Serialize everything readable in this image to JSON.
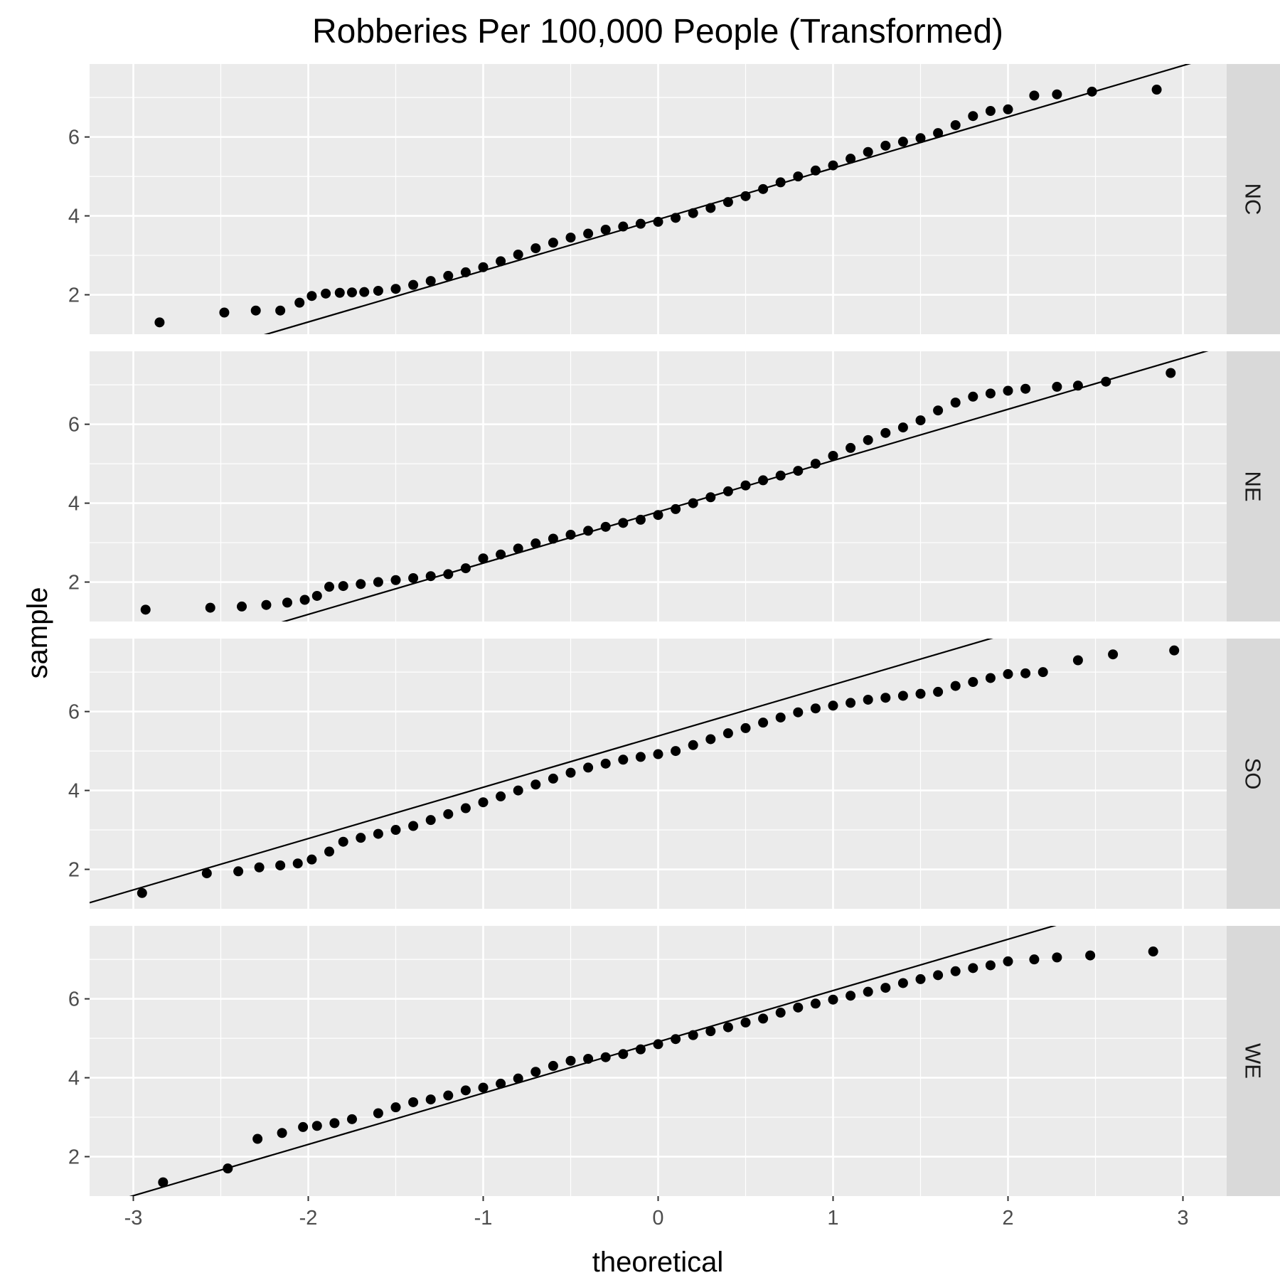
{
  "chart_data": {
    "type": "scatter",
    "title": "Robberies Per 100,000 People (Transformed)",
    "xlabel": "theoretical",
    "ylabel": "sample",
    "xlim": [
      -3.25,
      3.25
    ],
    "ylim": [
      1.0,
      7.85
    ],
    "x_ticks": [
      -3,
      -2,
      -1,
      0,
      1,
      2,
      3
    ],
    "y_ticks": [
      2,
      4,
      6
    ],
    "grid": true,
    "colors": {
      "panel_bg": "#ebebeb",
      "grid": "#ffffff",
      "strip_bg": "#d9d9d9",
      "points": "#000000",
      "line": "#000000"
    },
    "panels": [
      {
        "strip": "NC",
        "reference_line": {
          "slope": 1.3,
          "intercept": 3.91
        },
        "points": [
          [
            -2.85,
            1.3
          ],
          [
            -2.48,
            1.55
          ],
          [
            -2.3,
            1.6
          ],
          [
            -2.16,
            1.6
          ],
          [
            -2.05,
            1.8
          ],
          [
            -1.98,
            1.97
          ],
          [
            -1.9,
            2.03
          ],
          [
            -1.82,
            2.05
          ],
          [
            -1.75,
            2.06
          ],
          [
            -1.68,
            2.07
          ],
          [
            -1.6,
            2.1
          ],
          [
            -1.5,
            2.15
          ],
          [
            -1.4,
            2.25
          ],
          [
            -1.3,
            2.35
          ],
          [
            -1.2,
            2.48
          ],
          [
            -1.1,
            2.57
          ],
          [
            -1.0,
            2.7
          ],
          [
            -0.9,
            2.85
          ],
          [
            -0.8,
            3.02
          ],
          [
            -0.7,
            3.18
          ],
          [
            -0.6,
            3.32
          ],
          [
            -0.5,
            3.45
          ],
          [
            -0.4,
            3.55
          ],
          [
            -0.3,
            3.65
          ],
          [
            -0.2,
            3.73
          ],
          [
            -0.1,
            3.8
          ],
          [
            0.0,
            3.85
          ],
          [
            0.1,
            3.95
          ],
          [
            0.2,
            4.07
          ],
          [
            0.3,
            4.2
          ],
          [
            0.4,
            4.35
          ],
          [
            0.5,
            4.5
          ],
          [
            0.6,
            4.68
          ],
          [
            0.7,
            4.85
          ],
          [
            0.8,
            5.0
          ],
          [
            0.9,
            5.15
          ],
          [
            1.0,
            5.28
          ],
          [
            1.1,
            5.45
          ],
          [
            1.2,
            5.62
          ],
          [
            1.3,
            5.78
          ],
          [
            1.4,
            5.88
          ],
          [
            1.5,
            5.97
          ],
          [
            1.6,
            6.1
          ],
          [
            1.7,
            6.3
          ],
          [
            1.8,
            6.53
          ],
          [
            1.9,
            6.66
          ],
          [
            2.0,
            6.7
          ],
          [
            2.15,
            7.05
          ],
          [
            2.28,
            7.08
          ],
          [
            2.48,
            7.15
          ],
          [
            2.85,
            7.2
          ]
        ]
      },
      {
        "strip": "NE",
        "reference_line": {
          "slope": 1.3,
          "intercept": 3.78
        },
        "points": [
          [
            -2.93,
            1.3
          ],
          [
            -2.56,
            1.35
          ],
          [
            -2.38,
            1.38
          ],
          [
            -2.24,
            1.42
          ],
          [
            -2.12,
            1.48
          ],
          [
            -2.02,
            1.55
          ],
          [
            -1.95,
            1.65
          ],
          [
            -1.88,
            1.88
          ],
          [
            -1.8,
            1.9
          ],
          [
            -1.7,
            1.95
          ],
          [
            -1.6,
            2.0
          ],
          [
            -1.5,
            2.05
          ],
          [
            -1.4,
            2.1
          ],
          [
            -1.3,
            2.15
          ],
          [
            -1.2,
            2.2
          ],
          [
            -1.1,
            2.35
          ],
          [
            -1.0,
            2.6
          ],
          [
            -0.9,
            2.7
          ],
          [
            -0.8,
            2.85
          ],
          [
            -0.7,
            2.98
          ],
          [
            -0.6,
            3.1
          ],
          [
            -0.5,
            3.2
          ],
          [
            -0.4,
            3.3
          ],
          [
            -0.3,
            3.4
          ],
          [
            -0.2,
            3.5
          ],
          [
            -0.1,
            3.58
          ],
          [
            0.0,
            3.7
          ],
          [
            0.1,
            3.85
          ],
          [
            0.2,
            4.0
          ],
          [
            0.3,
            4.15
          ],
          [
            0.4,
            4.3
          ],
          [
            0.5,
            4.45
          ],
          [
            0.6,
            4.58
          ],
          [
            0.7,
            4.7
          ],
          [
            0.8,
            4.82
          ],
          [
            0.9,
            5.0
          ],
          [
            1.0,
            5.2
          ],
          [
            1.1,
            5.4
          ],
          [
            1.2,
            5.6
          ],
          [
            1.3,
            5.78
          ],
          [
            1.4,
            5.92
          ],
          [
            1.5,
            6.1
          ],
          [
            1.6,
            6.35
          ],
          [
            1.7,
            6.55
          ],
          [
            1.8,
            6.7
          ],
          [
            1.9,
            6.78
          ],
          [
            2.0,
            6.85
          ],
          [
            2.1,
            6.9
          ],
          [
            2.28,
            6.95
          ],
          [
            2.4,
            6.98
          ],
          [
            2.56,
            7.08
          ],
          [
            2.93,
            7.3
          ]
        ]
      },
      {
        "strip": "SO",
        "reference_line": {
          "slope": 1.3,
          "intercept": 5.38
        },
        "points": [
          [
            -2.95,
            1.4
          ],
          [
            -2.58,
            1.9
          ],
          [
            -2.4,
            1.95
          ],
          [
            -2.28,
            2.05
          ],
          [
            -2.16,
            2.1
          ],
          [
            -2.06,
            2.15
          ],
          [
            -1.98,
            2.25
          ],
          [
            -1.88,
            2.45
          ],
          [
            -1.8,
            2.7
          ],
          [
            -1.7,
            2.8
          ],
          [
            -1.6,
            2.9
          ],
          [
            -1.5,
            3.0
          ],
          [
            -1.4,
            3.1
          ],
          [
            -1.3,
            3.25
          ],
          [
            -1.2,
            3.4
          ],
          [
            -1.1,
            3.55
          ],
          [
            -1.0,
            3.7
          ],
          [
            -0.9,
            3.85
          ],
          [
            -0.8,
            4.0
          ],
          [
            -0.7,
            4.15
          ],
          [
            -0.6,
            4.3
          ],
          [
            -0.5,
            4.45
          ],
          [
            -0.4,
            4.58
          ],
          [
            -0.3,
            4.68
          ],
          [
            -0.2,
            4.78
          ],
          [
            -0.1,
            4.85
          ],
          [
            0.0,
            4.92
          ],
          [
            0.1,
            5.0
          ],
          [
            0.2,
            5.15
          ],
          [
            0.3,
            5.3
          ],
          [
            0.4,
            5.45
          ],
          [
            0.5,
            5.58
          ],
          [
            0.6,
            5.72
          ],
          [
            0.7,
            5.85
          ],
          [
            0.8,
            5.98
          ],
          [
            0.9,
            6.08
          ],
          [
            1.0,
            6.15
          ],
          [
            1.1,
            6.22
          ],
          [
            1.2,
            6.3
          ],
          [
            1.3,
            6.35
          ],
          [
            1.4,
            6.4
          ],
          [
            1.5,
            6.45
          ],
          [
            1.6,
            6.5
          ],
          [
            1.7,
            6.65
          ],
          [
            1.8,
            6.75
          ],
          [
            1.9,
            6.85
          ],
          [
            2.0,
            6.95
          ],
          [
            2.1,
            6.97
          ],
          [
            2.2,
            7.0
          ],
          [
            2.4,
            7.3
          ],
          [
            2.6,
            7.45
          ],
          [
            2.95,
            7.55
          ]
        ]
      },
      {
        "strip": "WE",
        "reference_line": {
          "slope": 1.3,
          "intercept": 4.91
        },
        "points": [
          [
            -2.83,
            1.35
          ],
          [
            -2.46,
            1.7
          ],
          [
            -2.29,
            2.45
          ],
          [
            -2.15,
            2.6
          ],
          [
            -2.03,
            2.75
          ],
          [
            -1.95,
            2.78
          ],
          [
            -1.85,
            2.85
          ],
          [
            -1.75,
            2.95
          ],
          [
            -1.6,
            3.1
          ],
          [
            -1.5,
            3.25
          ],
          [
            -1.4,
            3.38
          ],
          [
            -1.3,
            3.45
          ],
          [
            -1.2,
            3.55
          ],
          [
            -1.1,
            3.68
          ],
          [
            -1.0,
            3.75
          ],
          [
            -0.9,
            3.85
          ],
          [
            -0.8,
            3.98
          ],
          [
            -0.7,
            4.15
          ],
          [
            -0.6,
            4.3
          ],
          [
            -0.5,
            4.43
          ],
          [
            -0.4,
            4.48
          ],
          [
            -0.3,
            4.52
          ],
          [
            -0.2,
            4.6
          ],
          [
            -0.1,
            4.72
          ],
          [
            0.0,
            4.85
          ],
          [
            0.1,
            4.98
          ],
          [
            0.2,
            5.08
          ],
          [
            0.3,
            5.18
          ],
          [
            0.4,
            5.28
          ],
          [
            0.5,
            5.4
          ],
          [
            0.6,
            5.5
          ],
          [
            0.7,
            5.65
          ],
          [
            0.8,
            5.78
          ],
          [
            0.9,
            5.88
          ],
          [
            1.0,
            5.98
          ],
          [
            1.1,
            6.08
          ],
          [
            1.2,
            6.18
          ],
          [
            1.3,
            6.28
          ],
          [
            1.4,
            6.4
          ],
          [
            1.5,
            6.5
          ],
          [
            1.6,
            6.6
          ],
          [
            1.7,
            6.7
          ],
          [
            1.8,
            6.78
          ],
          [
            1.9,
            6.85
          ],
          [
            2.0,
            6.95
          ],
          [
            2.15,
            7.0
          ],
          [
            2.28,
            7.05
          ],
          [
            2.47,
            7.1
          ],
          [
            2.83,
            7.2
          ]
        ]
      }
    ]
  }
}
